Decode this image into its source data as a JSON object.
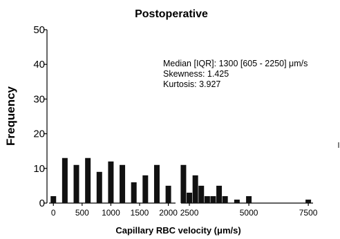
{
  "chart_data": {
    "type": "bar",
    "title": "Postoperative",
    "xlabel": "Capillary RBC velocity (μm/s)",
    "ylabel": "Frequency",
    "ylim": [
      0,
      50
    ],
    "y_ticks": [
      "0",
      "10",
      "20",
      "30",
      "40",
      "50"
    ],
    "x_axis_break": true,
    "segment1": {
      "xlim": [
        -75,
        2125
      ],
      "x_ticks": [
        {
          "value": 0,
          "label": "0"
        },
        {
          "value": 500,
          "label": "500"
        },
        {
          "value": 1000,
          "label": "1000"
        },
        {
          "value": 1500,
          "label": "1500"
        },
        {
          "value": 2000,
          "label": "2000"
        }
      ],
      "bars": [
        {
          "x": 0,
          "value": 2
        },
        {
          "x": 200,
          "value": 13
        },
        {
          "x": 400,
          "value": 11
        },
        {
          "x": 600,
          "value": 13
        },
        {
          "x": 800,
          "value": 9
        },
        {
          "x": 1000,
          "value": 12
        },
        {
          "x": 1200,
          "value": 11
        },
        {
          "x": 1400,
          "value": 6
        },
        {
          "x": 1600,
          "value": 8
        },
        {
          "x": 1800,
          "value": 11
        },
        {
          "x": 2000,
          "value": 5
        }
      ]
    },
    "segment2": {
      "xlim": [
        2150,
        7700
      ],
      "x_ticks": [
        {
          "value": 2500,
          "label": "2500"
        },
        {
          "value": 5000,
          "label": "5000"
        },
        {
          "value": 7500,
          "label": "7500"
        }
      ],
      "bars": [
        {
          "x": 2250,
          "value": 11
        },
        {
          "x": 2500,
          "value": 3
        },
        {
          "x": 2750,
          "value": 8
        },
        {
          "x": 3000,
          "value": 5
        },
        {
          "x": 3250,
          "value": 2
        },
        {
          "x": 3500,
          "value": 2
        },
        {
          "x": 3750,
          "value": 5
        },
        {
          "x": 4000,
          "value": 2
        },
        {
          "x": 4500,
          "value": 1
        },
        {
          "x": 5000,
          "value": 2
        },
        {
          "x": 7500,
          "value": 1
        }
      ]
    },
    "annotations": [
      "Median [IQR]: 1300 [605 - 2250] μm/s",
      "Skewness: 1.425",
      "Kurtosis: 3.927"
    ]
  }
}
